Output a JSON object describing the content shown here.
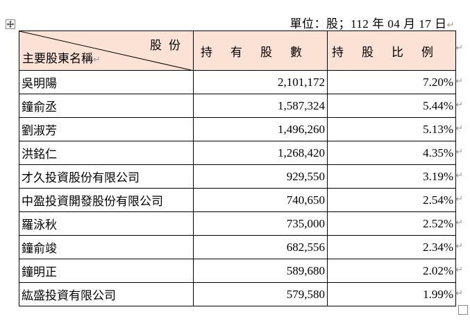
{
  "header": {
    "unit_line": "單位：股；112 年 04 月 17 日",
    "paragraph_mark": "↵"
  },
  "table": {
    "corner_top": "股份",
    "corner_bottom": "主要股東名稱",
    "col_shares": "持有股數",
    "col_ratio": "持股比例",
    "rows": [
      {
        "name": "吳明陽",
        "shares": "2,101,172",
        "ratio": "7.20%"
      },
      {
        "name": "鐘俞丞",
        "shares": "1,587,324",
        "ratio": "5.44%"
      },
      {
        "name": "劉淑芳",
        "shares": "1,496,260",
        "ratio": "5.13%"
      },
      {
        "name": "洪銘仁",
        "shares": "1,268,420",
        "ratio": "4.35%"
      },
      {
        "name": "才久投資股份有限公司",
        "shares": "929,550",
        "ratio": "3.19%"
      },
      {
        "name": "中盈投資開發股份有限公司",
        "shares": "740,650",
        "ratio": "2.54%"
      },
      {
        "name": "羅泳秋",
        "shares": "735,000",
        "ratio": "2.52%"
      },
      {
        "name": "鐘俞竣",
        "shares": "682,556",
        "ratio": "2.34%"
      },
      {
        "name": "鐘明正",
        "shares": "589,680",
        "ratio": "2.02%"
      },
      {
        "name": "紘盛投資有限公司",
        "shares": "579,580",
        "ratio": "1.99%"
      }
    ]
  }
}
